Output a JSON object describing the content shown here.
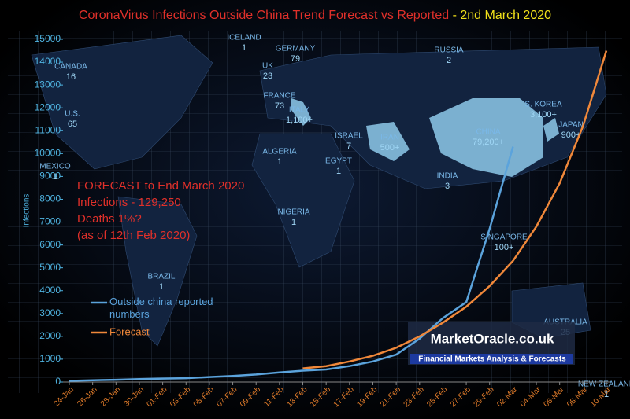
{
  "chart_data": {
    "type": "line",
    "title": "CoronaVirus Infections Outside China Trend Forecast vs Reported",
    "title_date": "- 2nd March 2020",
    "y_label": "Infections",
    "categories": [
      "24-Jan",
      "26-Jan",
      "28-Jan",
      "30-Jan",
      "01-Feb",
      "03-Feb",
      "05-Feb",
      "07-Feb",
      "09-Feb",
      "11-Feb",
      "13-Feb",
      "15-Feb",
      "17-Feb",
      "19-Feb",
      "21-Feb",
      "23-Feb",
      "25-Feb",
      "27-Feb",
      "29-Feb",
      "02-Mar",
      "04-Mar",
      "06-Mar",
      "08-Mar",
      "10-Mar"
    ],
    "series": [
      {
        "name": "Outside china reported numbers",
        "color": "#5ba3dc",
        "values": [
          50,
          80,
          100,
          130,
          150,
          170,
          220,
          270,
          330,
          420,
          500,
          550,
          700,
          900,
          1200,
          1900,
          2800,
          3500,
          6700,
          10300,
          null,
          null,
          null,
          null
        ]
      },
      {
        "name": "Forecast",
        "color": "#f0883a",
        "values": [
          null,
          null,
          null,
          null,
          null,
          null,
          null,
          null,
          null,
          null,
          600,
          700,
          900,
          1150,
          1500,
          2000,
          2600,
          3300,
          4200,
          5300,
          6800,
          8700,
          11200,
          14500
        ]
      }
    ],
    "ylim": [
      0,
      15000
    ],
    "yticks": [
      0,
      1000,
      2000,
      3000,
      4000,
      5000,
      6000,
      7000,
      8000,
      9000,
      10000,
      11000,
      12000,
      13000,
      14000,
      15000
    ],
    "annotation": [
      "FORECAST to End March 2020",
      "Infections - 129,250",
      "Deaths 1%?",
      "(as of 12th Feb  2020)"
    ],
    "watermark": {
      "site": "MarketOracle.co.uk",
      "tagline": "Financial Markets Analysis & Forecasts"
    },
    "map_labels": [
      {
        "name": "ICELAND",
        "count": "1"
      },
      {
        "name": "CANADA",
        "count": "16"
      },
      {
        "name": "UK",
        "count": "23"
      },
      {
        "name": "GERMANY",
        "count": "79"
      },
      {
        "name": "RUSSIA",
        "count": "2"
      },
      {
        "name": "FRANCE",
        "count": "73"
      },
      {
        "name": "ITALY",
        "count": "1,100+"
      },
      {
        "name": "U.S.",
        "count": "65"
      },
      {
        "name": "S. KOREA",
        "count": "3,100+"
      },
      {
        "name": "JAPAN",
        "count": "900+"
      },
      {
        "name": "CHINA",
        "count": "79,200+"
      },
      {
        "name": "IRAN",
        "count": "500+"
      },
      {
        "name": "ISRAEL",
        "count": "7"
      },
      {
        "name": "ALGERIA",
        "count": "1"
      },
      {
        "name": "EGYPT",
        "count": "1"
      },
      {
        "name": "MEXICO",
        "count": "1"
      },
      {
        "name": "INDIA",
        "count": "3"
      },
      {
        "name": "NIGERIA",
        "count": "1"
      },
      {
        "name": "SINGAPORE",
        "count": "100+"
      },
      {
        "name": "BRAZIL",
        "count": "1"
      },
      {
        "name": "AUSTRALIA",
        "count": "25"
      },
      {
        "name": "NEW ZEALAND",
        "count": "1"
      }
    ]
  }
}
